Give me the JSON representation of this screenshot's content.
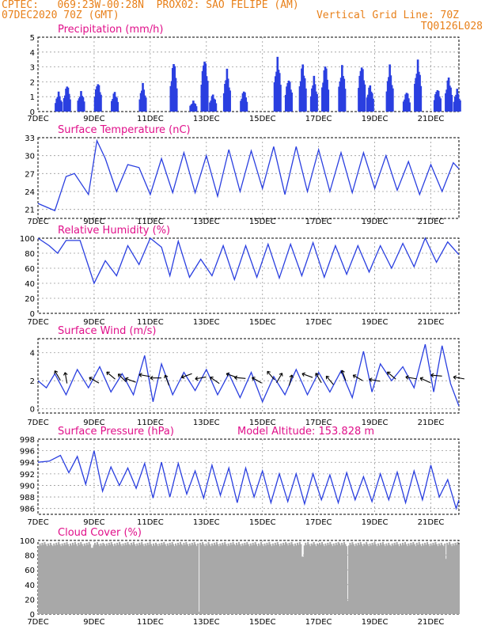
{
  "header": {
    "line1_left": "CPTEC:   069:23W-00:28N  PROX02: SAO FELIPE (AM)",
    "line2_left": "07DEC2020 70Z (GMT)",
    "line2_right": "Vertical Grid Line: 70Z",
    "line3_right": "TQ0126L028"
  },
  "colors": {
    "header": "#e8801a",
    "panel_title": "#e0108a",
    "line": "#2a3fe0",
    "bar": "#2a3fe0",
    "cloud": "#a8a8a8"
  },
  "x_axis": {
    "labels": [
      "7DEC",
      "9DEC",
      "11DEC",
      "13DEC",
      "15DEC",
      "17DEC",
      "19DEC",
      "21DEC"
    ],
    "start_day": 7,
    "end_day": 22
  },
  "model_altitude": "Model Altitude: 153.828 m",
  "chart_data": [
    {
      "type": "bar",
      "title": "Precipitation (mm/h)",
      "ylim": [
        0,
        5
      ],
      "yticks": [
        "0",
        "1",
        "2",
        "3",
        "4",
        "5"
      ],
      "x_unit": "day of December 2020",
      "bursts": [
        {
          "day": 7.7,
          "peak": 1.4
        },
        {
          "day": 8.0,
          "peak": 2.0
        },
        {
          "day": 8.5,
          "peak": 1.5
        },
        {
          "day": 9.1,
          "peak": 2.3
        },
        {
          "day": 9.7,
          "peak": 1.5
        },
        {
          "day": 10.7,
          "peak": 2.0
        },
        {
          "day": 11.8,
          "peak": 3.8
        },
        {
          "day": 12.5,
          "peak": 0.8
        },
        {
          "day": 12.9,
          "peak": 4.2
        },
        {
          "day": 13.2,
          "peak": 1.3
        },
        {
          "day": 13.7,
          "peak": 3.0
        },
        {
          "day": 14.3,
          "peak": 1.6
        },
        {
          "day": 15.5,
          "peak": 4.0
        },
        {
          "day": 15.9,
          "peak": 2.6
        },
        {
          "day": 16.4,
          "peak": 3.6
        },
        {
          "day": 16.8,
          "peak": 2.5
        },
        {
          "day": 17.2,
          "peak": 3.6
        },
        {
          "day": 17.8,
          "peak": 3.4
        },
        {
          "day": 18.5,
          "peak": 3.7
        },
        {
          "day": 18.8,
          "peak": 2.0
        },
        {
          "day": 19.5,
          "peak": 3.3
        },
        {
          "day": 20.1,
          "peak": 1.5
        },
        {
          "day": 20.5,
          "peak": 3.8
        },
        {
          "day": 21.2,
          "peak": 1.8
        },
        {
          "day": 21.6,
          "peak": 2.6
        },
        {
          "day": 21.9,
          "peak": 1.6
        }
      ]
    },
    {
      "type": "line",
      "title": "Surface Temperature (nC)",
      "ylim": [
        19.5,
        33
      ],
      "yticks": [
        "21",
        "24",
        "27",
        "30",
        "33"
      ],
      "ytick_values": [
        21,
        24,
        27,
        30,
        33
      ],
      "x": [
        7.0,
        7.6,
        8.0,
        8.3,
        8.8,
        9.1,
        9.4,
        9.8,
        10.2,
        10.6,
        11.0,
        11.4,
        11.8,
        12.2,
        12.6,
        13.0,
        13.4,
        13.8,
        14.2,
        14.6,
        15.0,
        15.4,
        15.8,
        16.2,
        16.6,
        17.0,
        17.4,
        17.8,
        18.2,
        18.6,
        19.0,
        19.4,
        19.8,
        20.2,
        20.6,
        21.0,
        21.4,
        21.8,
        22.0
      ],
      "y": [
        22.0,
        20.8,
        26.5,
        27.0,
        23.5,
        32.5,
        29.5,
        24.0,
        28.5,
        28.0,
        23.5,
        29.5,
        23.8,
        30.5,
        23.8,
        30.0,
        23.2,
        31.0,
        24.0,
        30.8,
        24.5,
        31.5,
        23.5,
        31.5,
        24.0,
        31.0,
        24.0,
        30.5,
        23.8,
        30.5,
        24.5,
        30.0,
        24.2,
        29.0,
        23.5,
        28.5,
        24.0,
        28.8,
        27.8
      ]
    },
    {
      "type": "line",
      "title": "Relative Humidity (%)",
      "ylim": [
        0,
        100
      ],
      "yticks": [
        "0",
        "20",
        "40",
        "60",
        "80",
        "100"
      ],
      "ytick_values": [
        0,
        20,
        40,
        60,
        80,
        100
      ],
      "x": [
        7.0,
        7.4,
        7.7,
        8.0,
        8.5,
        9.0,
        9.4,
        9.8,
        10.2,
        10.6,
        11.0,
        11.4,
        11.7,
        12.0,
        12.4,
        12.8,
        13.2,
        13.6,
        14.0,
        14.4,
        14.8,
        15.2,
        15.6,
        16.0,
        16.4,
        16.8,
        17.2,
        17.6,
        18.0,
        18.4,
        18.8,
        19.2,
        19.6,
        20.0,
        20.4,
        20.8,
        21.2,
        21.6,
        22.0
      ],
      "y": [
        100,
        90,
        80,
        97,
        97,
        40,
        70,
        50,
        90,
        65,
        100,
        88,
        50,
        96,
        48,
        72,
        50,
        90,
        45,
        90,
        48,
        92,
        47,
        92,
        50,
        94,
        48,
        90,
        52,
        90,
        55,
        90,
        60,
        93,
        62,
        100,
        68,
        95,
        78
      ]
    },
    {
      "type": "line",
      "title": "Surface Wind (m/s)",
      "ylim": [
        -0.3,
        5
      ],
      "yticks": [
        "0",
        "2",
        "4"
      ],
      "ytick_values": [
        0,
        2,
        4
      ],
      "x": [
        7.0,
        7.3,
        7.6,
        8.0,
        8.4,
        8.8,
        9.2,
        9.6,
        10.0,
        10.4,
        10.8,
        11.1,
        11.4,
        11.8,
        12.2,
        12.6,
        13.0,
        13.4,
        13.8,
        14.2,
        14.6,
        15.0,
        15.4,
        15.8,
        16.2,
        16.6,
        17.0,
        17.4,
        17.8,
        18.2,
        18.6,
        18.9,
        19.2,
        19.6,
        20.0,
        20.4,
        20.8,
        21.1,
        21.4,
        21.7,
        22.0
      ],
      "y": [
        2.0,
        1.5,
        2.5,
        1.0,
        2.8,
        1.5,
        3.0,
        1.2,
        2.5,
        1.0,
        3.8,
        0.5,
        3.2,
        1.0,
        2.6,
        1.3,
        2.8,
        1.0,
        2.5,
        0.8,
        2.6,
        0.5,
        2.3,
        1.0,
        2.8,
        1.0,
        2.6,
        1.2,
        2.7,
        0.8,
        4.1,
        1.2,
        3.2,
        2.0,
        3.0,
        1.5,
        4.6,
        1.2,
        4.5,
        1.8,
        0.2
      ],
      "arrows_x": [
        7.7,
        8.0,
        9.0,
        9.6,
        10.0,
        10.3,
        10.8,
        11.2,
        11.6,
        12.3,
        12.8,
        13.3,
        13.9,
        14.2,
        14.8,
        15.3,
        15.6,
        16.0,
        16.6,
        17.0,
        17.4,
        17.9,
        18.4,
        19.0,
        19.6,
        20.3,
        20.8,
        21.2,
        22.0
      ],
      "arrows_deg": [
        120,
        100,
        150,
        140,
        135,
        160,
        170,
        180,
        110,
        200,
        190,
        145,
        160,
        175,
        150,
        130,
        60,
        75,
        160,
        120,
        130,
        110,
        150,
        170,
        140,
        170,
        155,
        175,
        170
      ]
    },
    {
      "type": "line",
      "title": "Surface Pressure (hPa)",
      "ylim": [
        985,
        998
      ],
      "yticks": [
        "986",
        "988",
        "990",
        "992",
        "994",
        "996",
        "998"
      ],
      "ytick_values": [
        986,
        988,
        990,
        992,
        994,
        996,
        998
      ],
      "x": [
        7.0,
        7.4,
        7.8,
        8.1,
        8.4,
        8.7,
        9.0,
        9.3,
        9.6,
        9.9,
        10.2,
        10.5,
        10.8,
        11.1,
        11.4,
        11.7,
        12.0,
        12.3,
        12.6,
        12.9,
        13.2,
        13.5,
        13.8,
        14.1,
        14.4,
        14.7,
        15.0,
        15.3,
        15.6,
        15.9,
        16.2,
        16.5,
        16.8,
        17.1,
        17.4,
        17.7,
        18.0,
        18.3,
        18.6,
        18.9,
        19.2,
        19.5,
        19.8,
        20.1,
        20.4,
        20.7,
        21.0,
        21.3,
        21.6,
        21.9,
        22.0
      ],
      "y": [
        994.0,
        994.2,
        995.2,
        992.2,
        995.0,
        990.2,
        996.0,
        989.0,
        993.2,
        990.0,
        993.0,
        989.5,
        993.8,
        987.8,
        994.0,
        988.0,
        993.8,
        988.5,
        992.5,
        987.8,
        993.5,
        988.3,
        993.0,
        987.0,
        993.0,
        988.0,
        992.5,
        987.0,
        992.0,
        987.2,
        992.0,
        986.8,
        992.0,
        987.5,
        991.8,
        987.0,
        992.2,
        987.5,
        991.5,
        987.2,
        992.0,
        987.5,
        992.3,
        987.0,
        992.5,
        987.5,
        993.5,
        988.0,
        991.0,
        986.0,
        987.5
      ]
    },
    {
      "type": "bar",
      "title": "Cloud Cover (%)",
      "ylim": [
        0,
        100
      ],
      "yticks": [
        "0",
        "20",
        "40",
        "60",
        "80",
        "100"
      ],
      "ytick_values": [
        0,
        20,
        40,
        60,
        80,
        100
      ],
      "typical_value": 95,
      "dips": [
        {
          "day": 12.7,
          "value": 3
        },
        {
          "day": 18.0,
          "value": 18
        },
        {
          "day": 16.4,
          "value": 78
        },
        {
          "day": 21.5,
          "value": 75
        },
        {
          "day": 8.9,
          "value": 90
        }
      ]
    }
  ]
}
